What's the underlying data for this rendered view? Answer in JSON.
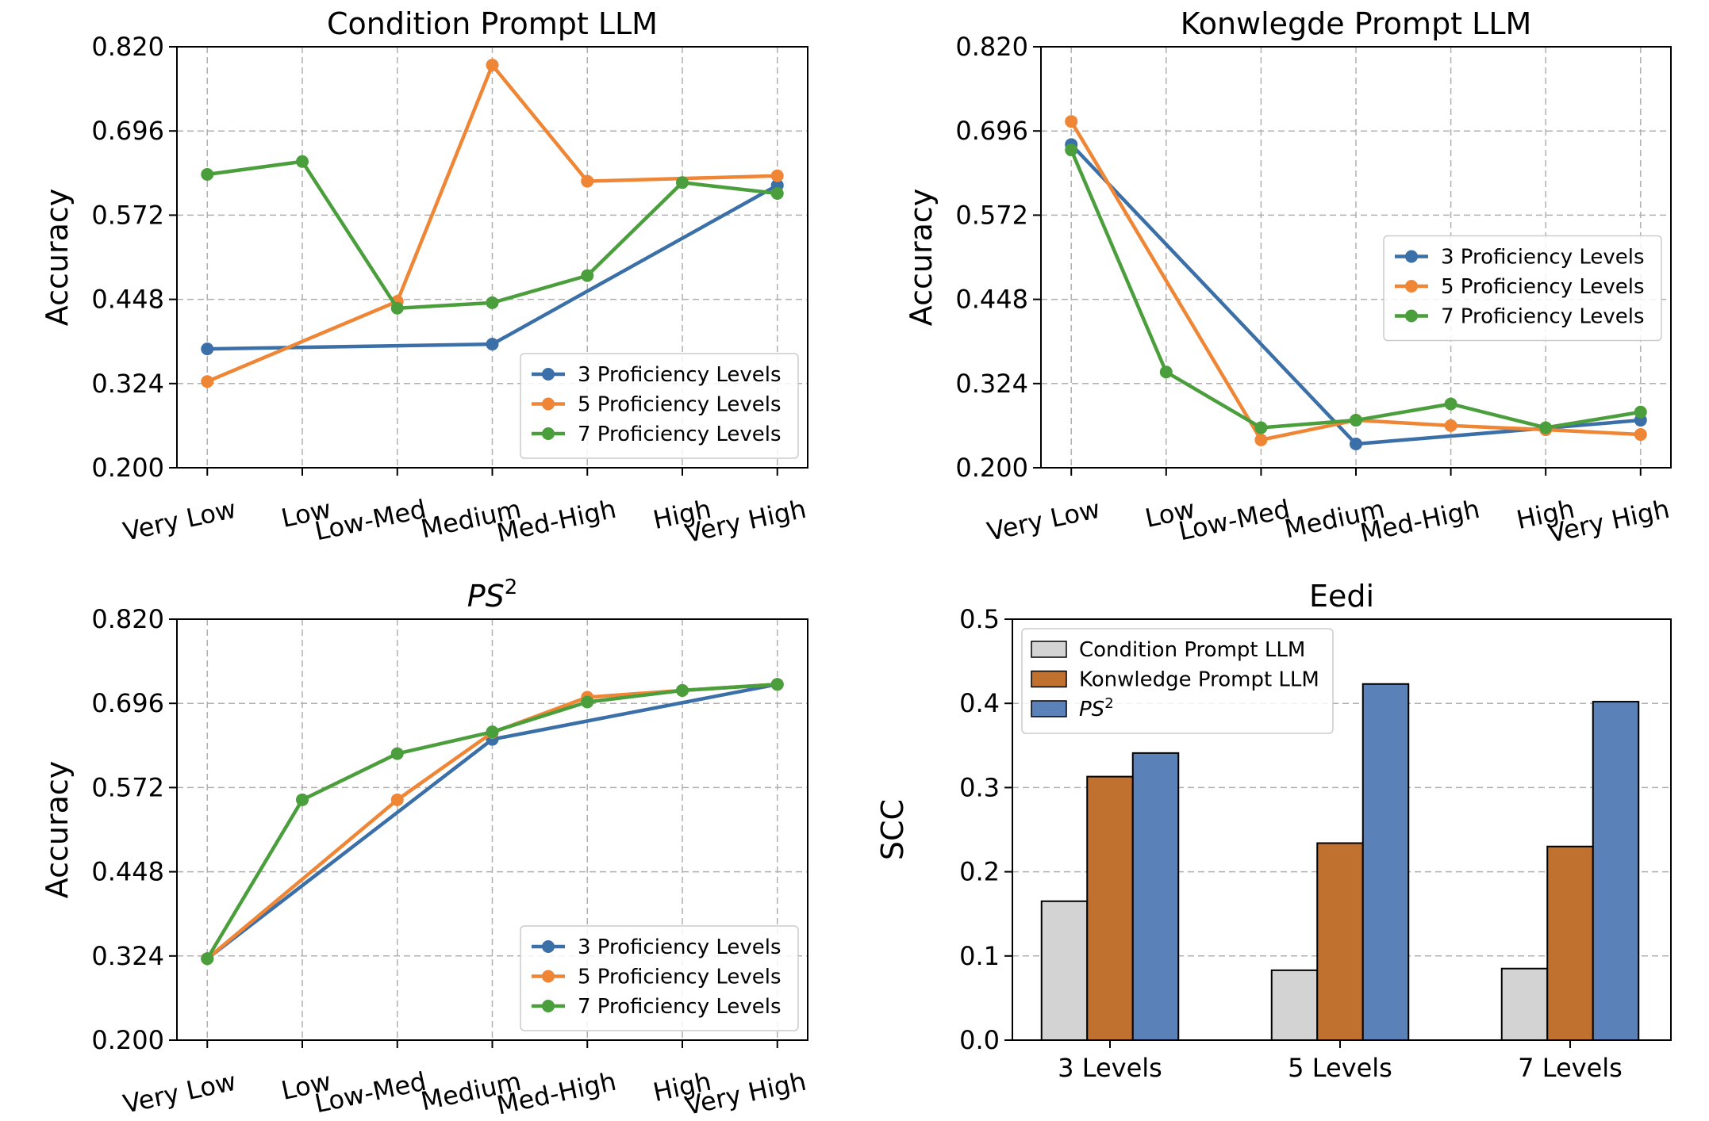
{
  "colors": {
    "blue": "#3a6fa8",
    "orange": "#ef8636",
    "green": "#4b9e3c",
    "bar_gray": "#d3d3d3",
    "bar_brown": "#c0702f",
    "bar_blue": "#5a82b8"
  },
  "chart_data": [
    {
      "id": "cond",
      "type": "line",
      "title": "Condition Prompt LLM",
      "title_italic": false,
      "ylabel": "Accuracy",
      "xlabel": "",
      "categories": [
        "Very Low",
        "Low",
        "Low-Med",
        "Medium",
        "Med-High",
        "High",
        "Very High"
      ],
      "ylim": [
        0.2,
        0.82
      ],
      "yticks": [
        "0.200",
        "0.324",
        "0.448",
        "0.572",
        "0.696",
        "0.820"
      ],
      "legend_position": "lower-right",
      "series": [
        {
          "name": "3 Proficiency Levels",
          "color": "blue",
          "points": [
            [
              0,
              0.375
            ],
            [
              3,
              0.382
            ],
            [
              6,
              0.616
            ]
          ]
        },
        {
          "name": "5 Proficiency Levels",
          "color": "orange",
          "points": [
            [
              0,
              0.327
            ],
            [
              2,
              0.445
            ],
            [
              3,
              0.793
            ],
            [
              4,
              0.622
            ],
            [
              6,
              0.63
            ]
          ]
        },
        {
          "name": "7 Proficiency Levels",
          "color": "green",
          "points": [
            [
              0,
              0.632
            ],
            [
              1,
              0.651
            ],
            [
              2,
              0.435
            ],
            [
              3,
              0.443
            ],
            [
              4,
              0.483
            ],
            [
              5,
              0.62
            ],
            [
              6,
              0.604
            ]
          ]
        }
      ]
    },
    {
      "id": "know",
      "type": "line",
      "title": "Konwlegde Prompt LLM",
      "title_italic": false,
      "ylabel": "Accuracy",
      "xlabel": "",
      "categories": [
        "Very Low",
        "Low",
        "Low-Med",
        "Medium",
        "Med-High",
        "High",
        "Very High"
      ],
      "ylim": [
        0.2,
        0.82
      ],
      "yticks": [
        "0.200",
        "0.324",
        "0.448",
        "0.572",
        "0.696",
        "0.820"
      ],
      "legend_position": "center-right",
      "series": [
        {
          "name": "3 Proficiency Levels",
          "color": "blue",
          "points": [
            [
              0,
              0.676
            ],
            [
              3,
              0.235
            ],
            [
              6,
              0.27
            ]
          ]
        },
        {
          "name": "5 Proficiency Levels",
          "color": "orange",
          "points": [
            [
              0,
              0.71
            ],
            [
              2,
              0.241
            ],
            [
              3,
              0.27
            ],
            [
              4,
              0.262
            ],
            [
              5,
              0.256
            ],
            [
              6,
              0.249
            ]
          ]
        },
        {
          "name": "7 Proficiency Levels",
          "color": "green",
          "points": [
            [
              0,
              0.668
            ],
            [
              1,
              0.341
            ],
            [
              2,
              0.259
            ],
            [
              3,
              0.27
            ],
            [
              4,
              0.294
            ],
            [
              5,
              0.259
            ],
            [
              6,
              0.282
            ]
          ]
        }
      ]
    },
    {
      "id": "ps2",
      "type": "line",
      "title": "PS",
      "title_sup": "2",
      "title_italic": true,
      "ylabel": "Accuracy",
      "xlabel": "",
      "categories": [
        "Very Low",
        "Low",
        "Low-Med",
        "Medium",
        "Med-High",
        "High",
        "Very High"
      ],
      "ylim": [
        0.2,
        0.82
      ],
      "yticks": [
        "0.200",
        "0.324",
        "0.448",
        "0.572",
        "0.696",
        "0.820"
      ],
      "legend_position": "lower-right",
      "series": [
        {
          "name": "3 Proficiency Levels",
          "color": "blue",
          "points": [
            [
              0,
              0.32
            ],
            [
              3,
              0.643
            ],
            [
              6,
              0.724
            ]
          ]
        },
        {
          "name": "5 Proficiency Levels",
          "color": "orange",
          "points": [
            [
              0,
              0.32
            ],
            [
              2,
              0.554
            ],
            [
              3,
              0.653
            ],
            [
              4,
              0.705
            ],
            [
              5,
              0.715
            ],
            [
              6,
              0.724
            ]
          ]
        },
        {
          "name": "7 Proficiency Levels",
          "color": "green",
          "points": [
            [
              0,
              0.32
            ],
            [
              1,
              0.554
            ],
            [
              2,
              0.622
            ],
            [
              3,
              0.654
            ],
            [
              4,
              0.698
            ],
            [
              5,
              0.715
            ],
            [
              6,
              0.724
            ]
          ]
        }
      ]
    },
    {
      "id": "eedi",
      "type": "bar",
      "title": "Eedi",
      "title_italic": false,
      "ylabel": "SCC",
      "xlabel": "",
      "categories": [
        "3 Levels",
        "5 Levels",
        "7 Levels"
      ],
      "ylim": [
        0,
        0.5
      ],
      "yticks": [
        "0.0",
        "0.1",
        "0.2",
        "0.3",
        "0.4",
        "0.5"
      ],
      "legend_position": "top-left",
      "series": [
        {
          "name": "Condition Prompt LLM",
          "color": "bar_gray",
          "values": [
            0.165,
            0.083,
            0.085
          ]
        },
        {
          "name": "Konwledge Prompt LLM",
          "color": "bar_brown",
          "values": [
            0.313,
            0.234,
            0.23
          ]
        },
        {
          "name": "PS",
          "name_sup": "2",
          "name_italic": true,
          "color": "bar_blue",
          "values": [
            0.341,
            0.423,
            0.402
          ]
        }
      ]
    }
  ]
}
